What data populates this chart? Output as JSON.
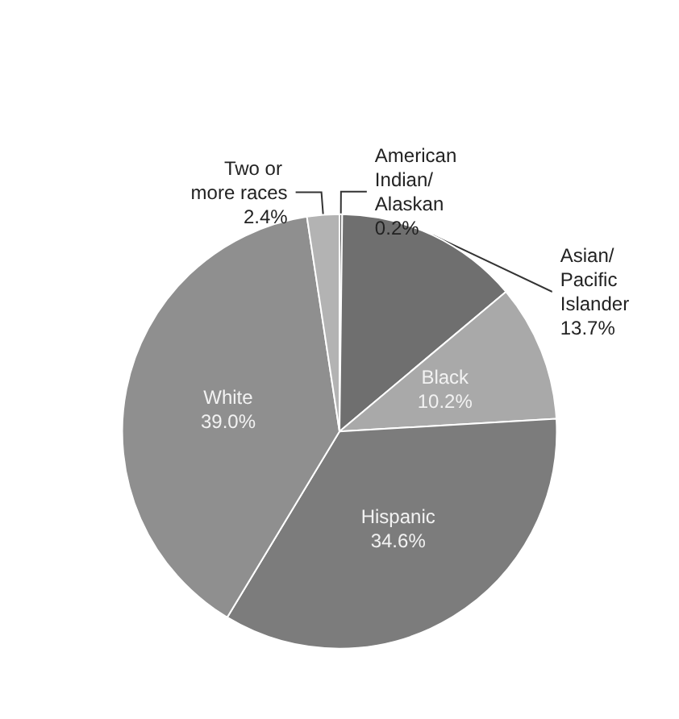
{
  "chart_data": {
    "type": "pie",
    "categories": [
      "American Indian/ Alaskan",
      "Asian/ Pacific Islander",
      "Black",
      "Hispanic",
      "White",
      "Two or more races"
    ],
    "values": [
      0.2,
      13.7,
      10.2,
      34.6,
      39.0,
      2.4
    ],
    "value_labels": [
      "0.2%",
      "13.7%",
      "10.2%",
      "34.6%",
      "39.0%",
      "2.4%"
    ],
    "colors": [
      "#5a5a5a",
      "#6f6f6f",
      "#a9a9a9",
      "#7c7c7c",
      "#8f8f8f",
      "#b3b3b3"
    ],
    "legend": false
  }
}
